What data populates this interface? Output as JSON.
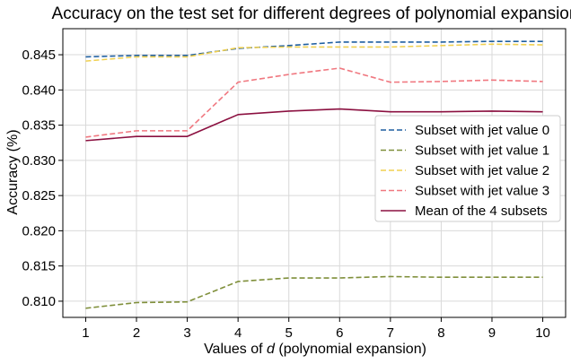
{
  "chart_data": {
    "type": "line",
    "title": "Accuracy on the test set for different degrees of polynomial expansion",
    "xlabel_prefix": "Values of ",
    "xlabel_var": "d",
    "xlabel_suffix": " (polynomial expansion)",
    "ylabel": "Accuracy (%)",
    "x": [
      1,
      2,
      3,
      4,
      5,
      6,
      7,
      8,
      9,
      10
    ],
    "xticks": [
      "1",
      "2",
      "3",
      "4",
      "5",
      "6",
      "7",
      "8",
      "9",
      "10"
    ],
    "yticks": [
      "0.810",
      "0.815",
      "0.820",
      "0.825",
      "0.830",
      "0.835",
      "0.840",
      "0.845"
    ],
    "ytick_values": [
      0.81,
      0.815,
      0.82,
      0.825,
      0.83,
      0.835,
      0.84,
      0.845
    ],
    "xlim": [
      0.55,
      10.45
    ],
    "ylim": [
      0.8077,
      0.8487
    ],
    "grid": true,
    "legend_position": "center-right",
    "series": [
      {
        "name": "Subset with jet value 0",
        "color": "#1f5fa0",
        "dash": "dashed",
        "values": [
          0.8447,
          0.8449,
          0.8449,
          0.8459,
          0.8463,
          0.8468,
          0.8468,
          0.8468,
          0.8469,
          0.8469
        ]
      },
      {
        "name": "Subset with jet value 1",
        "color": "#7f8f3a",
        "dash": "dashed",
        "values": [
          0.809,
          0.8098,
          0.8099,
          0.8128,
          0.8133,
          0.8133,
          0.8135,
          0.8134,
          0.8134,
          0.8134
        ]
      },
      {
        "name": "Subset with jet value 2",
        "color": "#f0d050",
        "dash": "dashed",
        "values": [
          0.8441,
          0.8447,
          0.8447,
          0.846,
          0.8461,
          0.8461,
          0.8461,
          0.8463,
          0.8465,
          0.8464
        ]
      },
      {
        "name": "Subset with jet value 3",
        "color": "#f07880",
        "dash": "dashed",
        "values": [
          0.8333,
          0.8342,
          0.8342,
          0.8411,
          0.8422,
          0.8431,
          0.8411,
          0.8412,
          0.8414,
          0.8412
        ]
      },
      {
        "name": "Mean of the 4 subsets",
        "color": "#8b1040",
        "dash": "solid",
        "values": [
          0.8328,
          0.8334,
          0.8334,
          0.8365,
          0.837,
          0.8373,
          0.8369,
          0.8369,
          0.837,
          0.8369
        ]
      }
    ]
  }
}
